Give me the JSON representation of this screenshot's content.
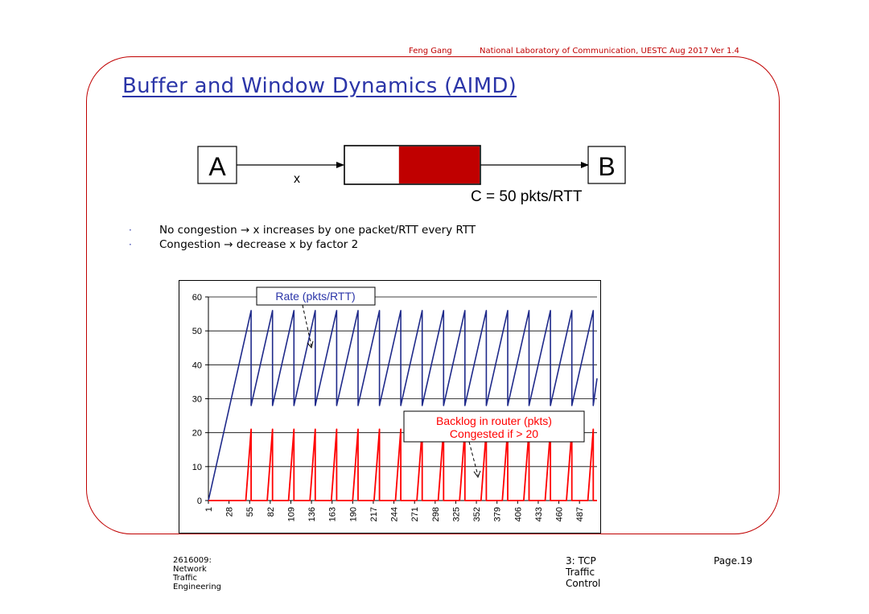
{
  "header": {
    "author": "Feng Gang",
    "affiliation": "National Laboratory of Communication, UESTC  Aug 2017 Ver 1.4"
  },
  "slide": {
    "title": "Buffer and Window Dynamics (AIMD)",
    "bullets": [
      "No congestion → x increases by one packet/RTT every RTT",
      "Congestion → decrease x by factor 2"
    ]
  },
  "diagram": {
    "node_a": "A",
    "node_b": "B",
    "flow_label": "x",
    "capacity_label": "C = 50 pkts/RTT",
    "buffer_fill_color": "#c00000",
    "buffer_fill_fraction": 0.6
  },
  "chart_data": {
    "type": "line",
    "ylim": [
      0,
      60
    ],
    "yticks": [
      0,
      10,
      20,
      30,
      40,
      50,
      60
    ],
    "x_range": [
      1,
      510
    ],
    "x_tick_labels": [
      "1",
      "28",
      "55",
      "82",
      "109",
      "136",
      "163",
      "190",
      "217",
      "244",
      "271",
      "298",
      "325",
      "352",
      "379",
      "406",
      "433",
      "460",
      "487"
    ],
    "annotations": [
      {
        "text": "Rate (pkts/RTT)",
        "color": "#2b35a8"
      },
      {
        "text": "Backlog in router (pkts)\nCongested if > 20",
        "color": "#ff0000"
      }
    ],
    "series": [
      {
        "color": "#1f2a8a",
        "x": [
          1,
          57,
          57,
          85,
          85,
          113,
          113,
          141,
          141,
          169,
          169,
          197,
          197,
          225,
          225,
          253,
          253,
          281,
          281,
          309,
          309,
          337,
          337,
          365,
          365,
          393,
          393,
          421,
          421,
          449,
          449,
          477,
          477,
          505,
          505,
          510
        ],
        "values": [
          0,
          56,
          28,
          56,
          28,
          56,
          28,
          56,
          28,
          56,
          28,
          56,
          28,
          56,
          28,
          56,
          28,
          56,
          28,
          56,
          28,
          56,
          28,
          56,
          28,
          56,
          28,
          56,
          28,
          56,
          28,
          56,
          28,
          56,
          28,
          36
        ]
      },
      {
        "color": "#ff0000",
        "x": [
          1,
          50,
          57,
          57,
          78,
          85,
          85,
          106,
          113,
          113,
          134,
          141,
          141,
          162,
          169,
          169,
          190,
          197,
          197,
          218,
          225,
          225,
          246,
          253,
          253,
          274,
          281,
          281,
          302,
          309,
          309,
          330,
          337,
          337,
          358,
          365,
          365,
          386,
          393,
          393,
          414,
          421,
          421,
          442,
          449,
          449,
          470,
          477,
          477,
          498,
          505,
          505,
          510
        ],
        "values": [
          0,
          0,
          21,
          0,
          0,
          21,
          0,
          0,
          21,
          0,
          0,
          21,
          0,
          0,
          21,
          0,
          0,
          21,
          0,
          0,
          21,
          0,
          0,
          21,
          0,
          0,
          21,
          0,
          0,
          21,
          0,
          0,
          21,
          0,
          0,
          21,
          0,
          0,
          21,
          0,
          0,
          21,
          0,
          0,
          21,
          0,
          0,
          21,
          0,
          0,
          21,
          0,
          0
        ]
      }
    ]
  },
  "footer": {
    "course": "2616009: Network Traffic Engineering",
    "chapter": "3: TCP Traffic Control",
    "page": "Page.19"
  }
}
